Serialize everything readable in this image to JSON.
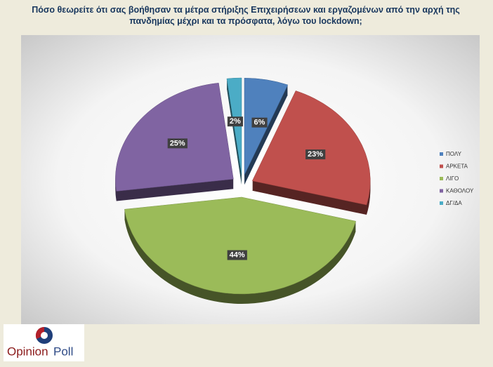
{
  "chart_data": {
    "type": "pie",
    "title": "Πόσο θεωρείτε ότι σας βοήθησαν τα μέτρα στήριξης Επιχειρήσεων και εργαζομένων από την αρχή της πανδημίας μέχρι και τα πρόσφατα, λόγω του lockdown;",
    "categories": [
      "ΠΟΛΥ",
      "ΑΡΚΕΤΑ",
      "ΛΙΓΟ",
      "ΚΑΘΟΛΟΥ",
      "ΔΓ/ΔΑ"
    ],
    "values": [
      6,
      23,
      44,
      25,
      2
    ],
    "value_labels": [
      "6%",
      "23%",
      "44%",
      "25%",
      "2%"
    ],
    "colors": [
      "#4f81bd",
      "#c0504d",
      "#9bbb59",
      "#8064a2",
      "#4bacc6"
    ],
    "legend": "right"
  },
  "logo": {
    "part1": "Opinion",
    "part2": "Poll"
  }
}
